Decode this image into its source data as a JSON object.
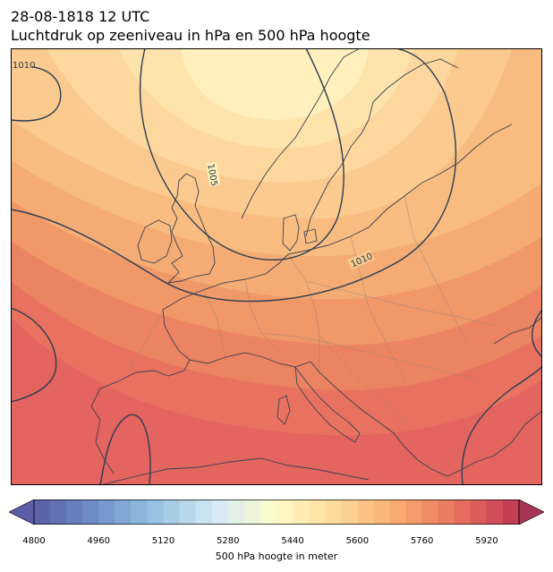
{
  "header": {
    "datetime": "28-08-1818 12 UTC",
    "subtitle": "Luchtdruk op zeeniveau in hPa en 500 hPa hoogte"
  },
  "map": {
    "isobar_labels": [
      "1010",
      "1005",
      "1010"
    ],
    "colors": {
      "isobar": "#2b3d52",
      "coast": "#3b4150",
      "border": "#8a8078",
      "frame": "#000000"
    }
  },
  "colorbar": {
    "label": "500 hPa hoogte in meter",
    "min": 4800,
    "max": 6000,
    "step": 40,
    "ticks": [
      "4800",
      "4960",
      "5120",
      "5280",
      "5440",
      "5600",
      "5760",
      "5920"
    ],
    "extend": "both"
  }
}
